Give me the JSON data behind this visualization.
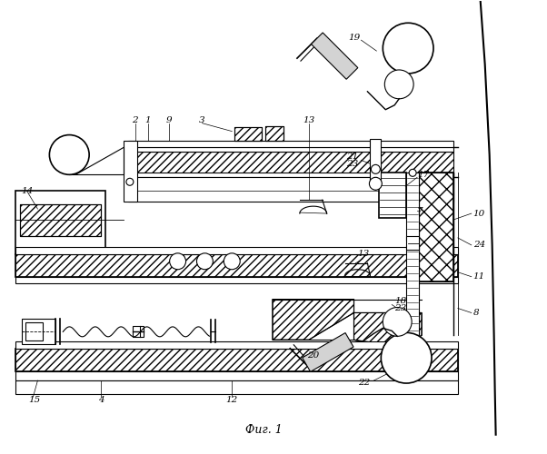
{
  "title": "Фиг. 1",
  "background_color": "#ffffff",
  "line_color": "#000000",
  "fig_width": 6.02,
  "fig_height": 5.0,
  "dpi": 100
}
